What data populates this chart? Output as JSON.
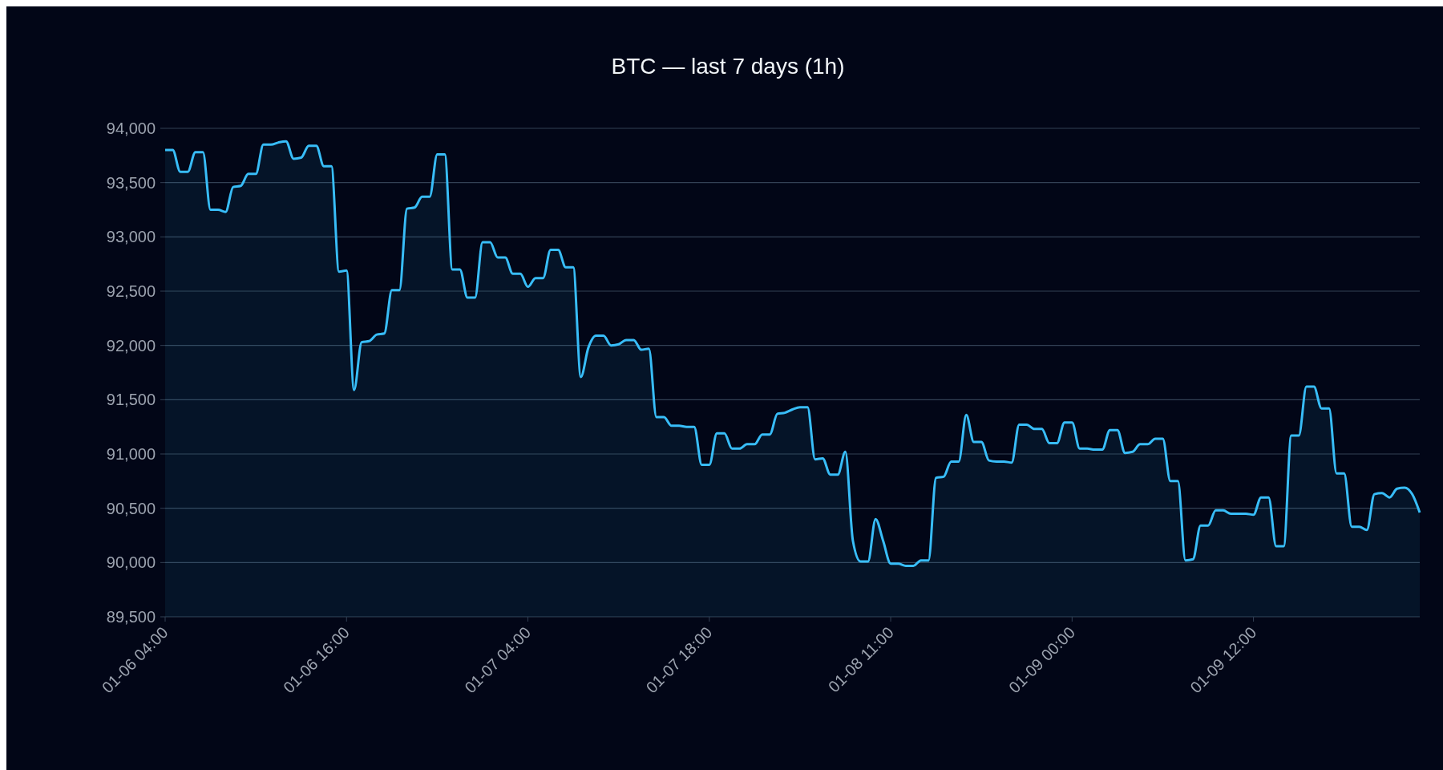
{
  "chart_data": {
    "type": "area",
    "title": "BTC — last 7 days (1h)",
    "categories": [
      "01-06 04:00",
      null,
      null,
      null,
      null,
      null,
      null,
      null,
      null,
      null,
      null,
      null,
      null,
      null,
      null,
      null,
      null,
      null,
      null,
      null,
      null,
      null,
      null,
      null,
      "01-06 16:00",
      null,
      null,
      null,
      null,
      null,
      null,
      null,
      null,
      null,
      null,
      null,
      null,
      null,
      null,
      null,
      null,
      null,
      null,
      null,
      null,
      null,
      null,
      null,
      "01-07 04:00",
      null,
      null,
      null,
      null,
      null,
      null,
      null,
      null,
      null,
      null,
      null,
      null,
      null,
      null,
      null,
      null,
      null,
      null,
      null,
      null,
      null,
      null,
      null,
      "01-07 18:00",
      null,
      null,
      null,
      null,
      null,
      null,
      null,
      null,
      null,
      null,
      null,
      null,
      null,
      null,
      null,
      null,
      null,
      null,
      null,
      null,
      null,
      null,
      null,
      "01-08 11:00",
      null,
      null,
      null,
      null,
      null,
      null,
      null,
      null,
      null,
      null,
      null,
      null,
      null,
      null,
      null,
      null,
      null,
      null,
      null,
      null,
      null,
      null,
      null,
      "01-09 00:00",
      null,
      null,
      null,
      null,
      null,
      null,
      null,
      null,
      null,
      null,
      null,
      null,
      null,
      null,
      null,
      null,
      null,
      null,
      null,
      null,
      null,
      null,
      null,
      "01-09 12:00",
      null,
      null,
      null,
      null,
      null,
      null,
      null,
      null,
      null,
      null,
      null,
      null,
      null,
      null,
      null,
      null,
      null,
      null,
      null,
      null,
      null,
      null
    ],
    "series": [
      {
        "color": "#38bdf8",
        "values": [
          93800,
          93800,
          93600,
          93600,
          93780,
          93780,
          93250,
          93250,
          93230,
          93460,
          93470,
          93580,
          93580,
          93850,
          93850,
          93870,
          93880,
          93720,
          93730,
          93840,
          93840,
          93650,
          93650,
          92680,
          92690,
          91590,
          92030,
          92040,
          92100,
          92110,
          92510,
          92510,
          93260,
          93270,
          93370,
          93370,
          93760,
          93760,
          92700,
          92700,
          92440,
          92440,
          92950,
          92950,
          92810,
          92810,
          92660,
          92660,
          92540,
          92620,
          92620,
          92880,
          92880,
          92720,
          92720,
          91710,
          91980,
          92090,
          92090,
          92000,
          92010,
          92050,
          92050,
          91960,
          91970,
          91340,
          91340,
          91260,
          91260,
          91250,
          91250,
          90900,
          90900,
          91190,
          91190,
          91050,
          91050,
          91090,
          91090,
          91180,
          91180,
          91370,
          91380,
          91410,
          91430,
          91430,
          90950,
          90960,
          90810,
          90810,
          91020,
          90200,
          90010,
          90010,
          90400,
          90200,
          89990,
          89990,
          89970,
          89970,
          90020,
          90020,
          90780,
          90790,
          90930,
          90930,
          91360,
          91110,
          91110,
          90940,
          90930,
          90930,
          90920,
          91270,
          91270,
          91230,
          91230,
          91100,
          91100,
          91290,
          91290,
          91050,
          91050,
          91040,
          91040,
          91220,
          91220,
          91010,
          91020,
          91090,
          91090,
          91140,
          91140,
          90750,
          90750,
          90020,
          90030,
          90340,
          90340,
          90480,
          90480,
          90450,
          90450,
          90450,
          90440,
          90600,
          90600,
          90150,
          90150,
          91170,
          91170,
          91620,
          91620,
          91420,
          91420,
          90820,
          90820,
          90330,
          90330,
          90300,
          90630,
          90640,
          90600,
          90680,
          90690,
          90630,
          90460
        ]
      }
    ],
    "ylim": [
      89500,
      94000
    ],
    "yticks": [
      {
        "value": 89500,
        "label": "89,500"
      },
      {
        "value": 90000,
        "label": "90,000"
      },
      {
        "value": 90500,
        "label": "90,500"
      },
      {
        "value": 91000,
        "label": "91,000"
      },
      {
        "value": 91500,
        "label": "91,500"
      },
      {
        "value": 92000,
        "label": "92,000"
      },
      {
        "value": 92500,
        "label": "92,500"
      },
      {
        "value": 93000,
        "label": "93,000"
      },
      {
        "value": 93500,
        "label": "93,500"
      },
      {
        "value": 94000,
        "label": "94,000"
      }
    ],
    "grid": "y"
  }
}
